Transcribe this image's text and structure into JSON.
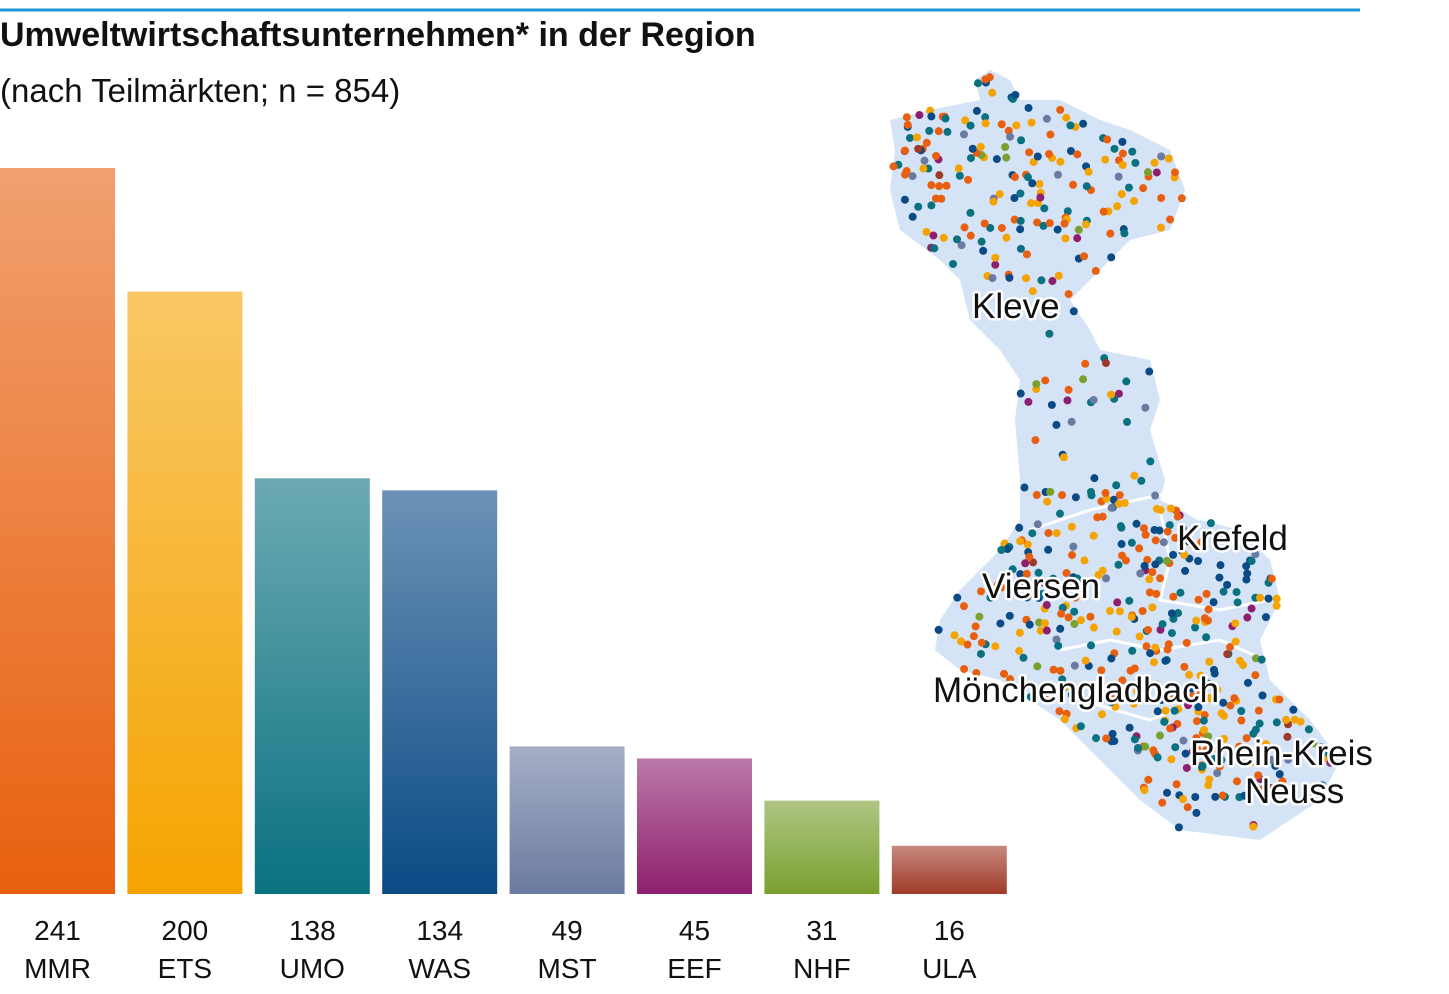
{
  "chart_data": {
    "type": "bar",
    "title": "Umweltwirtschaftsunternehmen* in der Region",
    "subtitle": "(nach Teilmärkten; n = 854)",
    "categories": [
      "MMR",
      "ETS",
      "UMO",
      "WAS",
      "MST",
      "EEF",
      "NHF",
      "ULA"
    ],
    "values": [
      241,
      200,
      138,
      134,
      49,
      45,
      31,
      16
    ],
    "colors": [
      "#e8600f",
      "#f5a300",
      "#0a7180",
      "#0a4a85",
      "#6a7aa0",
      "#8e1f6e",
      "#7aa030",
      "#a03a28"
    ]
  },
  "map": {
    "labels": [
      "Kleve",
      "Krefeld",
      "Viersen",
      "Mönchengladbach",
      "Rhein-Kreis",
      "Neuss"
    ]
  }
}
